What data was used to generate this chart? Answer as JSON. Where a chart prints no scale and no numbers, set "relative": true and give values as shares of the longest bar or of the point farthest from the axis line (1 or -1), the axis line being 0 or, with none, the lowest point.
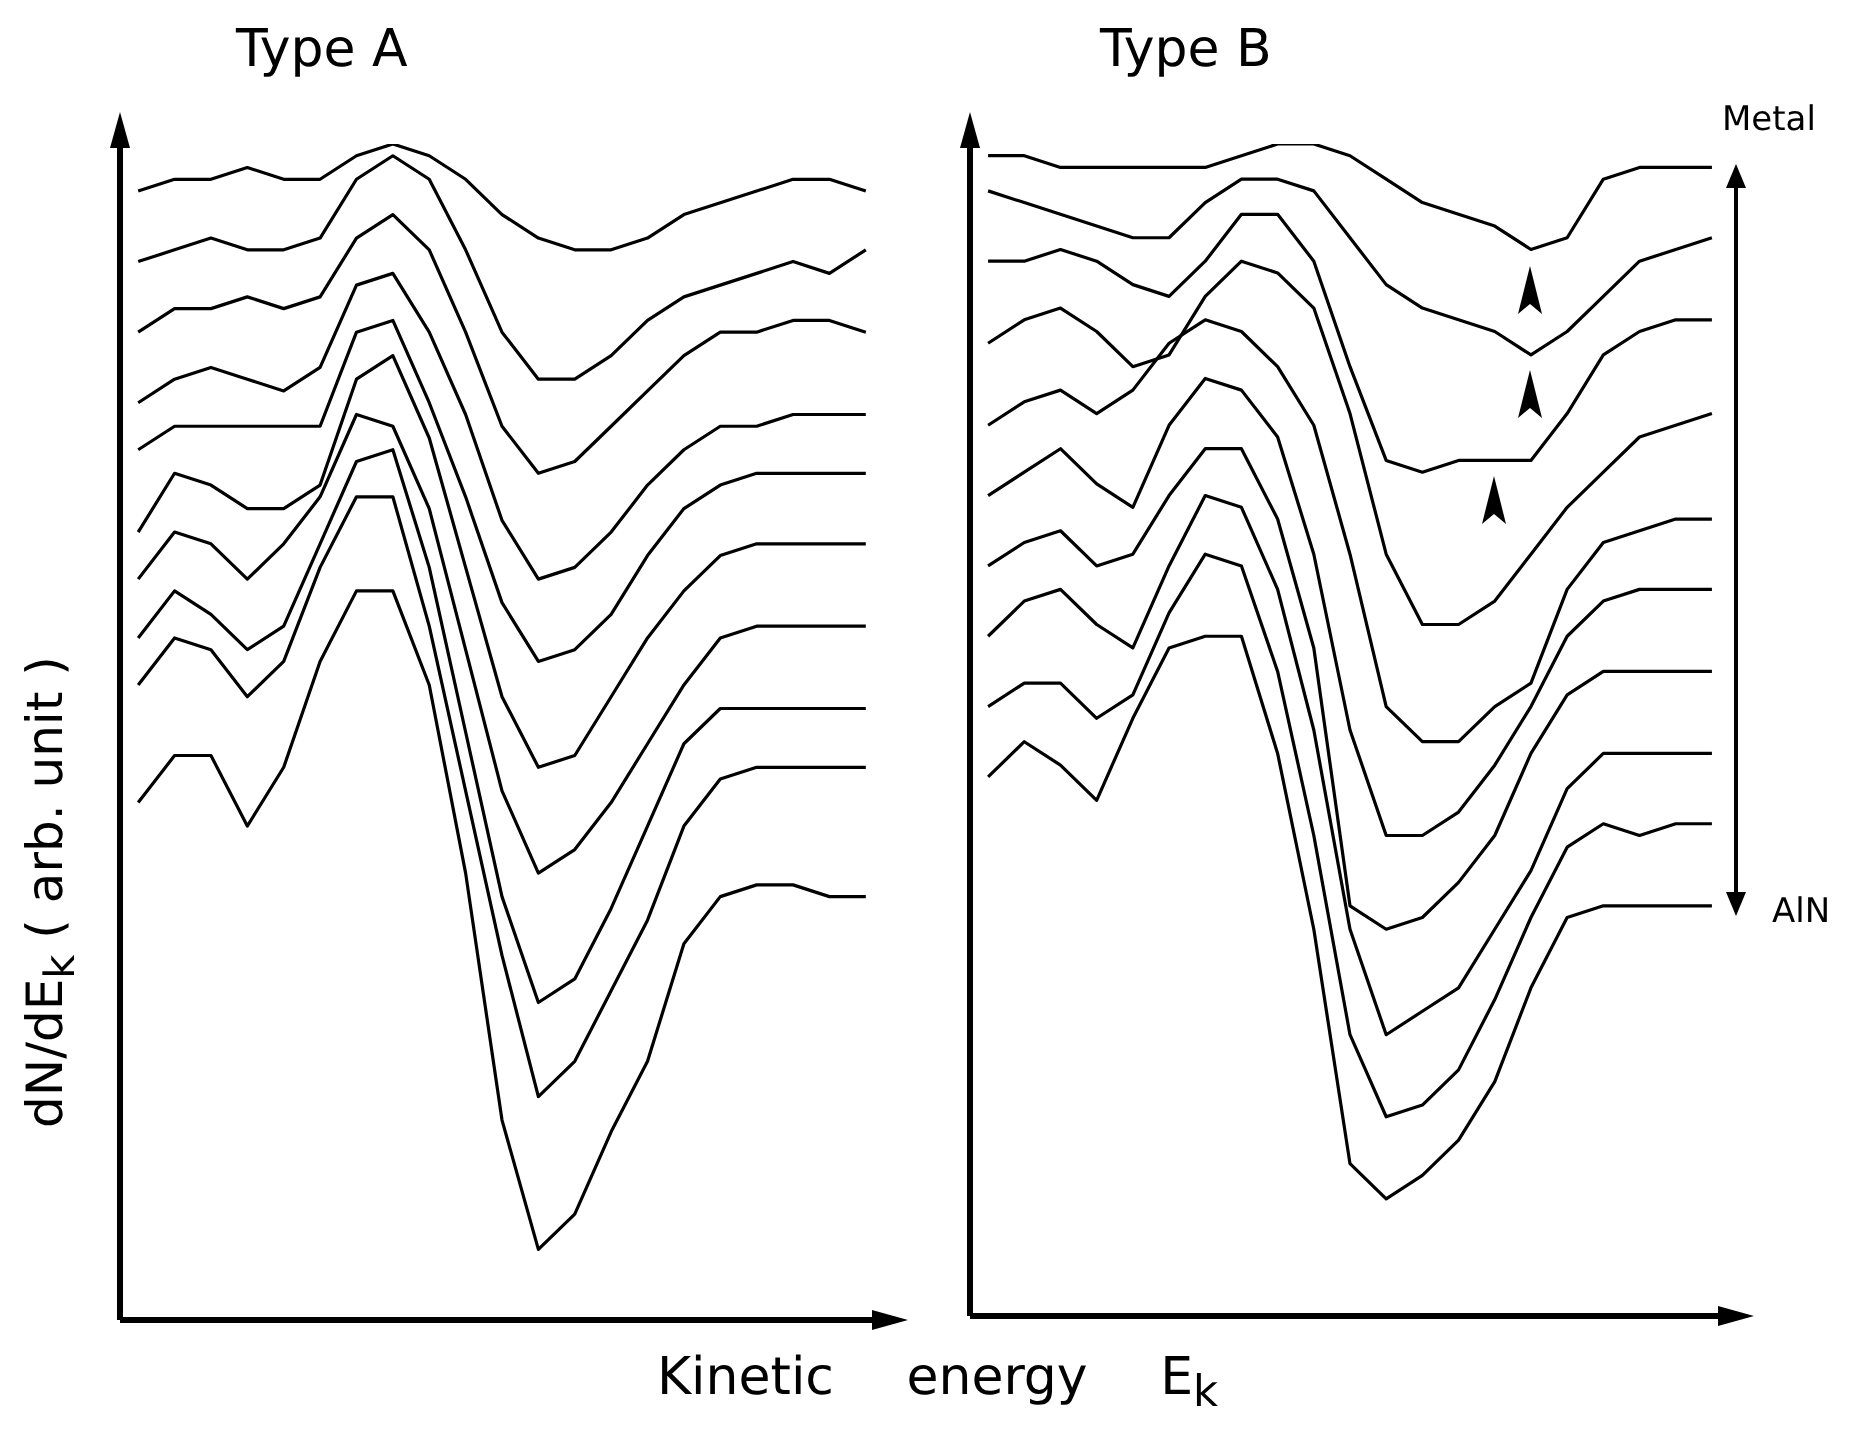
{
  "chart_data": [
    {
      "type": "line",
      "title": "Type A",
      "xlabel": "Kinetic energy E$_{k}$",
      "ylabel": "dN/dE$_{k}$ ( arb. unit )",
      "relative": true,
      "categories": [
        null,
        null,
        null,
        null,
        null,
        null,
        null,
        null,
        null,
        null,
        null,
        null,
        null,
        null,
        null,
        null,
        null,
        null,
        null,
        null,
        null
      ],
      "series": [
        {
          "color": "#000000",
          "values": [
            0.96,
            0.97,
            0.97,
            0.98,
            0.97,
            0.97,
            0.99,
            1,
            0.99,
            0.97,
            0.94,
            0.92,
            0.91,
            0.91,
            0.92,
            0.94,
            0.95,
            0.96,
            0.97,
            0.97,
            0.96
          ]
        },
        {
          "color": "#000000",
          "values": [
            0.9,
            0.91,
            0.92,
            0.91,
            0.91,
            0.92,
            0.97,
            0.99,
            0.97,
            0.91,
            0.84,
            0.8,
            0.8,
            0.82,
            0.85,
            0.87,
            0.88,
            0.89,
            0.9,
            0.89,
            0.91
          ]
        },
        {
          "color": "#000000",
          "values": [
            0.84,
            0.86,
            0.86,
            0.87,
            0.86,
            0.87,
            0.92,
            0.94,
            0.91,
            0.84,
            0.76,
            0.72,
            0.73,
            0.76,
            0.79,
            0.82,
            0.84,
            0.84,
            0.85,
            0.85,
            0.84
          ]
        },
        {
          "color": "#000000",
          "values": [
            0.78,
            0.8,
            0.81,
            0.8,
            0.79,
            0.81,
            0.88,
            0.89,
            0.84,
            0.77,
            0.68,
            0.63,
            0.64,
            0.67,
            0.71,
            0.74,
            0.76,
            0.76,
            0.77,
            0.77,
            0.77
          ]
        },
        {
          "color": "#000000",
          "values": [
            0.74,
            0.76,
            0.76,
            0.76,
            0.76,
            0.76,
            0.84,
            0.85,
            0.78,
            0.7,
            0.61,
            0.56,
            0.57,
            0.6,
            0.65,
            0.69,
            0.71,
            0.72,
            0.72,
            0.72,
            0.72
          ]
        },
        {
          "color": "#000000",
          "values": [
            0.67,
            0.72,
            0.71,
            0.69,
            0.69,
            0.71,
            0.8,
            0.82,
            0.75,
            0.64,
            0.53,
            0.47,
            0.48,
            0.53,
            0.58,
            0.62,
            0.65,
            0.66,
            0.66,
            0.66,
            0.66
          ]
        },
        {
          "color": "#000000",
          "values": [
            0.63,
            0.67,
            0.66,
            0.63,
            0.66,
            0.7,
            0.77,
            0.76,
            0.69,
            0.57,
            0.45,
            0.38,
            0.4,
            0.44,
            0.49,
            0.54,
            0.58,
            0.59,
            0.59,
            0.59,
            0.59
          ]
        },
        {
          "color": "#000000",
          "values": [
            0.58,
            0.62,
            0.6,
            0.57,
            0.59,
            0.66,
            0.73,
            0.74,
            0.64,
            0.5,
            0.36,
            0.27,
            0.29,
            0.35,
            0.42,
            0.49,
            0.52,
            0.52,
            0.52,
            0.52,
            0.52
          ]
        },
        {
          "color": "#000000",
          "values": [
            0.54,
            0.58,
            0.57,
            0.53,
            0.56,
            0.64,
            0.7,
            0.7,
            0.59,
            0.45,
            0.31,
            0.19,
            0.22,
            0.28,
            0.34,
            0.42,
            0.46,
            0.47,
            0.47,
            0.47,
            0.47
          ]
        },
        {
          "color": "#000000",
          "values": [
            0.44,
            0.48,
            0.48,
            0.42,
            0.47,
            0.56,
            0.62,
            0.62,
            0.54,
            0.38,
            0.17,
            0.06,
            0.09,
            0.16,
            0.22,
            0.32,
            0.36,
            0.37,
            0.37,
            0.36,
            0.36
          ]
        }
      ]
    },
    {
      "type": "line",
      "title": "Type B",
      "relative": true,
      "annotations": [
        "Metal",
        "AlN"
      ],
      "categories": [
        null,
        null,
        null,
        null,
        null,
        null,
        null,
        null,
        null,
        null,
        null,
        null,
        null,
        null,
        null,
        null,
        null,
        null,
        null,
        null,
        null
      ],
      "series": [
        {
          "color": "#000000",
          "values": [
            0.99,
            0.99,
            0.98,
            0.98,
            0.98,
            0.98,
            0.98,
            0.99,
            1,
            1,
            0.99,
            0.97,
            0.95,
            0.94,
            0.93,
            0.91,
            0.92,
            0.97,
            0.98,
            0.98,
            0.98
          ]
        },
        {
          "color": "#000000",
          "values": [
            0.96,
            0.95,
            0.94,
            0.93,
            0.92,
            0.92,
            0.95,
            0.97,
            0.97,
            0.96,
            0.92,
            0.88,
            0.86,
            0.85,
            0.84,
            0.82,
            0.84,
            0.87,
            0.9,
            0.91,
            0.92
          ]
        },
        {
          "color": "#000000",
          "values": [
            0.9,
            0.9,
            0.91,
            0.9,
            0.88,
            0.87,
            0.9,
            0.94,
            0.94,
            0.9,
            0.81,
            0.73,
            0.72,
            0.73,
            0.73,
            0.73,
            0.77,
            0.82,
            0.84,
            0.85,
            0.85
          ]
        },
        {
          "color": "#000000",
          "values": [
            0.83,
            0.85,
            0.86,
            0.84,
            0.81,
            0.82,
            0.87,
            0.9,
            0.89,
            0.86,
            0.77,
            0.65,
            0.59,
            0.59,
            0.61,
            0.65,
            0.69,
            0.72,
            0.75,
            0.76,
            0.77
          ]
        },
        {
          "color": "#000000",
          "values": [
            0.76,
            0.78,
            0.79,
            0.77,
            0.79,
            0.83,
            0.85,
            0.84,
            0.81,
            0.76,
            0.65,
            0.52,
            0.49,
            0.49,
            0.52,
            0.54,
            0.62,
            0.66,
            0.67,
            0.68,
            0.68
          ]
        },
        {
          "color": "#000000",
          "values": [
            0.7,
            0.72,
            0.74,
            0.71,
            0.69,
            0.76,
            0.8,
            0.79,
            0.75,
            0.65,
            0.5,
            0.41,
            0.41,
            0.43,
            0.47,
            0.52,
            0.58,
            0.61,
            0.62,
            0.62,
            0.62
          ]
        },
        {
          "color": "#000000",
          "values": [
            0.64,
            0.66,
            0.67,
            0.64,
            0.65,
            0.7,
            0.74,
            0.74,
            0.68,
            0.57,
            0.35,
            0.33,
            0.34,
            0.37,
            0.41,
            0.48,
            0.53,
            0.55,
            0.55,
            0.55,
            0.55
          ]
        },
        {
          "color": "#000000",
          "values": [
            0.58,
            0.61,
            0.62,
            0.59,
            0.57,
            0.64,
            0.7,
            0.69,
            0.62,
            0.5,
            0.33,
            0.24,
            0.26,
            0.28,
            0.33,
            0.38,
            0.45,
            0.48,
            0.48,
            0.48,
            0.48
          ]
        },
        {
          "color": "#000000",
          "values": [
            0.52,
            0.54,
            0.54,
            0.51,
            0.53,
            0.6,
            0.65,
            0.64,
            0.55,
            0.41,
            0.24,
            0.17,
            0.18,
            0.21,
            0.27,
            0.34,
            0.4,
            0.42,
            0.41,
            0.42,
            0.42
          ]
        },
        {
          "color": "#000000",
          "values": [
            0.46,
            0.49,
            0.47,
            0.44,
            0.51,
            0.57,
            0.58,
            0.58,
            0.48,
            0.33,
            0.13,
            0.1,
            0.12,
            0.15,
            0.2,
            0.28,
            0.34,
            0.35,
            0.35,
            0.35,
            0.35
          ]
        }
      ]
    }
  ]
}
